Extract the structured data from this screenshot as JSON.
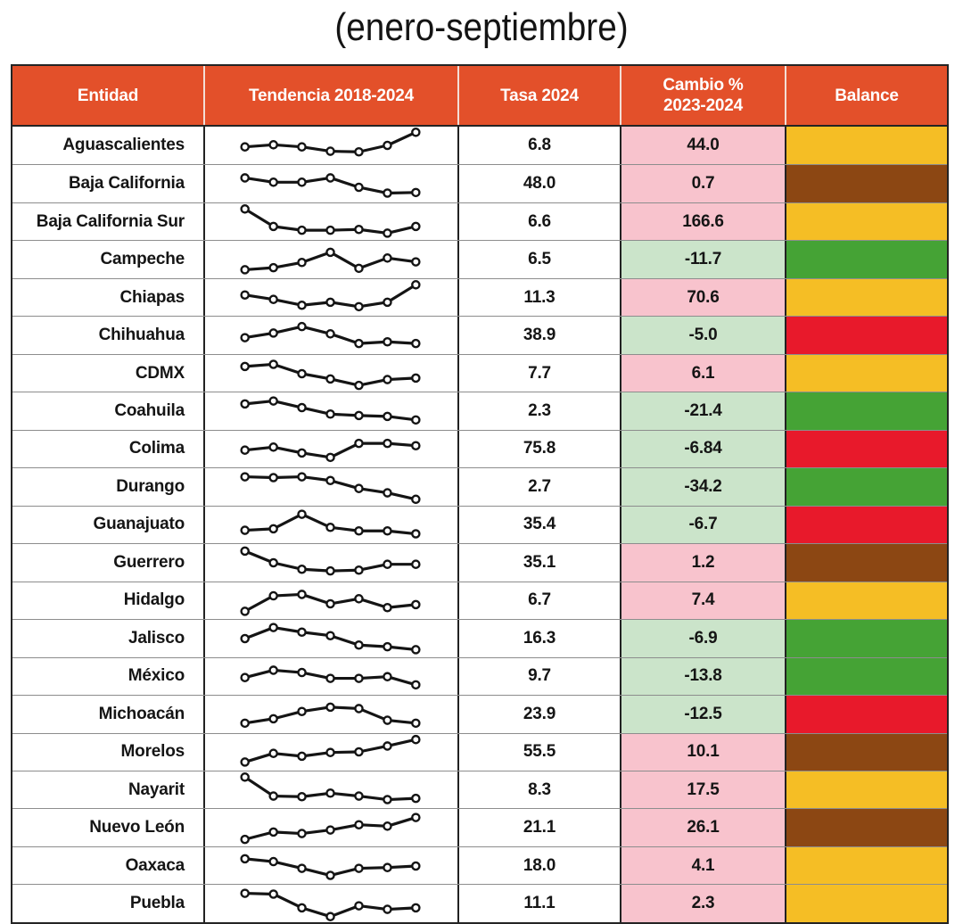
{
  "title": "(enero-septiembre)",
  "table": {
    "headers": {
      "entidad": "Entidad",
      "tendencia": "Tendencia 2018-2024",
      "tasa": "Tasa 2024",
      "cambio_line1": "Cambio %",
      "cambio_line2": "2023-2024",
      "balance": "Balance"
    }
  },
  "colors": {
    "header_bg": "#E3502A",
    "header_text": "#FFFFFF",
    "positive_bg": "#F8C3CD",
    "negative_bg": "#CBE4CA",
    "line": "#141414",
    "balance": {
      "green": "#45A335",
      "yellow": "#F5BE25",
      "brown": "#8C4713",
      "red": "#E8192B"
    }
  },
  "chart_data": {
    "type": "table",
    "title": "(enero-septiembre)",
    "columns": [
      "Entidad",
      "Tendencia 2018-2024",
      "Tasa 2024",
      "Cambio % 2023-2024",
      "Balance"
    ],
    "sparkline_years": [
      2018,
      2019,
      2020,
      2021,
      2022,
      2023,
      2024
    ],
    "sparkline_scale": "normalized 0-1, no axis shown",
    "rows": [
      {
        "entidad": "Aguascalientes",
        "trend": [
          0.45,
          0.52,
          0.45,
          0.3,
          0.28,
          0.5,
          0.95
        ],
        "tasa": "6.8",
        "cambio": "44.0",
        "balance": "yellow"
      },
      {
        "entidad": "Baja California",
        "trend": [
          0.7,
          0.55,
          0.55,
          0.7,
          0.38,
          0.18,
          0.2
        ],
        "tasa": "48.0",
        "cambio": "0.7",
        "balance": "brown"
      },
      {
        "entidad": "Baja California Sur",
        "trend": [
          0.95,
          0.35,
          0.22,
          0.22,
          0.25,
          0.12,
          0.35
        ],
        "tasa": "6.6",
        "cambio": "166.6",
        "balance": "yellow"
      },
      {
        "entidad": "Campeche",
        "trend": [
          0.15,
          0.22,
          0.4,
          0.75,
          0.2,
          0.55,
          0.42
        ],
        "tasa": "6.5",
        "cambio": "-11.7",
        "balance": "green"
      },
      {
        "entidad": "Chiapas",
        "trend": [
          0.6,
          0.45,
          0.25,
          0.35,
          0.2,
          0.35,
          0.95
        ],
        "tasa": "11.3",
        "cambio": "70.6",
        "balance": "yellow"
      },
      {
        "entidad": "Chihuahua",
        "trend": [
          0.42,
          0.58,
          0.8,
          0.55,
          0.22,
          0.28,
          0.22
        ],
        "tasa": "38.9",
        "cambio": "-5.0",
        "balance": "red"
      },
      {
        "entidad": "CDMX",
        "trend": [
          0.75,
          0.82,
          0.5,
          0.32,
          0.1,
          0.3,
          0.35
        ],
        "tasa": "7.7",
        "cambio": "6.1",
        "balance": "yellow"
      },
      {
        "entidad": "Coahuila",
        "trend": [
          0.75,
          0.85,
          0.62,
          0.4,
          0.35,
          0.32,
          0.2
        ],
        "tasa": "2.3",
        "cambio": "-21.4",
        "balance": "green"
      },
      {
        "entidad": "Colima",
        "trend": [
          0.45,
          0.55,
          0.35,
          0.2,
          0.68,
          0.68,
          0.6
        ],
        "tasa": "75.8",
        "cambio": "-6.84",
        "balance": "red"
      },
      {
        "entidad": "Durango",
        "trend": [
          0.85,
          0.82,
          0.85,
          0.72,
          0.45,
          0.3,
          0.08
        ],
        "tasa": "2.7",
        "cambio": "-34.2",
        "balance": "green"
      },
      {
        "entidad": "Guanajuato",
        "trend": [
          0.3,
          0.35,
          0.85,
          0.4,
          0.28,
          0.28,
          0.18
        ],
        "tasa": "35.4",
        "cambio": "-6.7",
        "balance": "red"
      },
      {
        "entidad": "Guerrero",
        "trend": [
          0.9,
          0.5,
          0.28,
          0.22,
          0.25,
          0.45,
          0.45
        ],
        "tasa": "35.1",
        "cambio": "1.2",
        "balance": "brown"
      },
      {
        "entidad": "Hidalgo",
        "trend": [
          0.12,
          0.65,
          0.7,
          0.38,
          0.55,
          0.25,
          0.35
        ],
        "tasa": "6.7",
        "cambio": "7.4",
        "balance": "yellow"
      },
      {
        "entidad": "Jalisco",
        "trend": [
          0.5,
          0.88,
          0.72,
          0.6,
          0.28,
          0.22,
          0.12
        ],
        "tasa": "16.3",
        "cambio": "-6.9",
        "balance": "green"
      },
      {
        "entidad": "México",
        "trend": [
          0.45,
          0.7,
          0.62,
          0.42,
          0.42,
          0.48,
          0.2
        ],
        "tasa": "9.7",
        "cambio": "-13.8",
        "balance": "green"
      },
      {
        "entidad": "Michoacán",
        "trend": [
          0.2,
          0.35,
          0.6,
          0.75,
          0.7,
          0.3,
          0.2
        ],
        "tasa": "23.9",
        "cambio": "-12.5",
        "balance": "red"
      },
      {
        "entidad": "Morelos",
        "trend": [
          0.15,
          0.45,
          0.35,
          0.48,
          0.5,
          0.7,
          0.92
        ],
        "tasa": "55.5",
        "cambio": "10.1",
        "balance": "brown"
      },
      {
        "entidad": "Nayarit",
        "trend": [
          0.95,
          0.3,
          0.28,
          0.4,
          0.3,
          0.18,
          0.22
        ],
        "tasa": "8.3",
        "cambio": "17.5",
        "balance": "yellow"
      },
      {
        "entidad": "Nuevo León",
        "trend": [
          0.1,
          0.35,
          0.3,
          0.42,
          0.6,
          0.55,
          0.85
        ],
        "tasa": "21.1",
        "cambio": "26.1",
        "balance": "brown"
      },
      {
        "entidad": "Oaxaca",
        "trend": [
          0.75,
          0.65,
          0.42,
          0.18,
          0.42,
          0.45,
          0.5
        ],
        "tasa": "18.0",
        "cambio": "4.1",
        "balance": "yellow"
      },
      {
        "entidad": "Puebla",
        "trend": [
          0.85,
          0.82,
          0.35,
          0.05,
          0.42,
          0.3,
          0.35
        ],
        "tasa": "11.1",
        "cambio": "2.3",
        "balance": "yellow"
      }
    ]
  }
}
